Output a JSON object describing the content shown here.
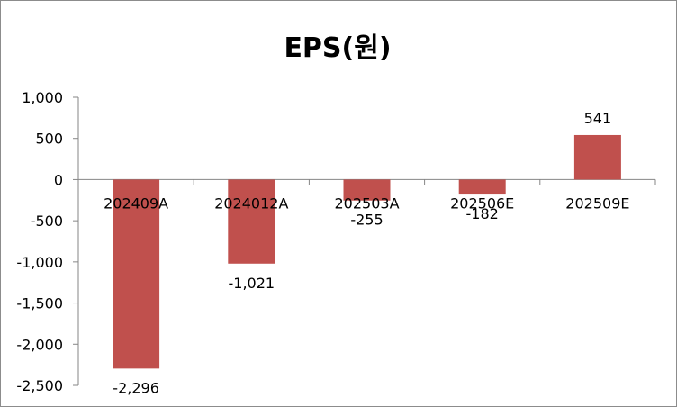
{
  "chart_data": {
    "type": "bar",
    "title": "EPS(원)",
    "xlabel": "",
    "ylabel": "",
    "categories": [
      "202409A",
      "2024012A",
      "202503A",
      "202506E",
      "202509E"
    ],
    "values": [
      -2296,
      -1021,
      -255,
      -182,
      541
    ],
    "value_labels": [
      "-2,296",
      "-1,021",
      "-255",
      "-182",
      "541"
    ],
    "ylim": [
      -2500,
      1000
    ],
    "yticks": [
      1000,
      500,
      0,
      -500,
      -1000,
      -1500,
      -2000,
      -2500
    ],
    "ytick_labels": [
      "1,000",
      "500",
      "0",
      "-500",
      "-1,000",
      "-1,500",
      "-2,000",
      "-2,500"
    ],
    "grid": false,
    "legend": "none",
    "bar_color": "#c0504d",
    "axis_color": "#868686"
  }
}
